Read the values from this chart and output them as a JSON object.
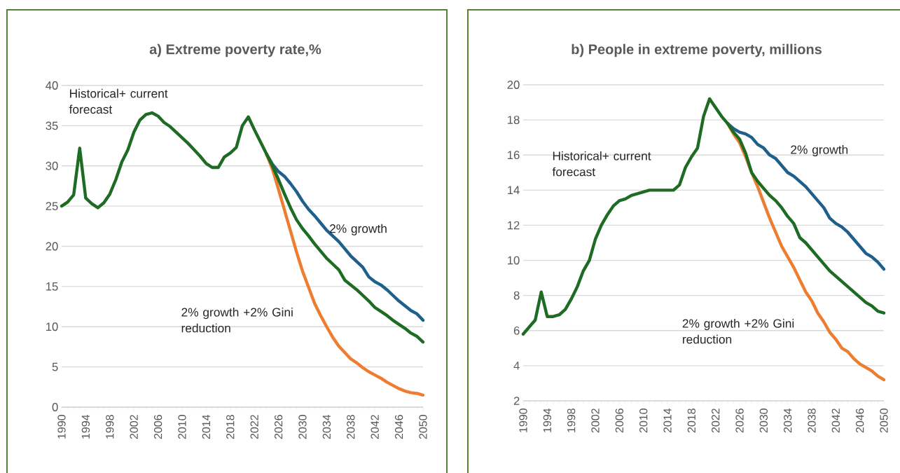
{
  "chart_data": [
    {
      "type": "line",
      "title": "a) Extreme poverty rate,%",
      "xlim": [
        1990,
        2050
      ],
      "xticks": [
        1990,
        1994,
        1998,
        2002,
        2006,
        2010,
        2014,
        2018,
        2022,
        2026,
        2030,
        2034,
        2038,
        2042,
        2046,
        2050
      ],
      "ylim": [
        0,
        40
      ],
      "yticks": [
        0,
        5,
        10,
        15,
        20,
        25,
        30,
        35,
        40
      ],
      "grid": "y",
      "legend": false,
      "marker": "none",
      "line_style": "solid",
      "series": [
        {
          "name": "2% growth",
          "color": "#1f5f8b",
          "x": [
            2024,
            2025,
            2026,
            2027,
            2028,
            2029,
            2030,
            2031,
            2032,
            2033,
            2034,
            2035,
            2036,
            2037,
            2038,
            2039,
            2040,
            2041,
            2042,
            2043,
            2044,
            2045,
            2046,
            2047,
            2048,
            2049,
            2050
          ],
          "values": [
            31.5,
            30.2,
            29.3,
            28.7,
            27.8,
            26.8,
            25.6,
            24.6,
            23.8,
            22.9,
            22.0,
            21.3,
            20.6,
            19.7,
            18.8,
            18.1,
            17.4,
            16.2,
            15.6,
            15.2,
            14.6,
            13.9,
            13.2,
            12.6,
            12.0,
            11.6,
            10.8
          ]
        },
        {
          "name": "2% growth +2% Gini reduction",
          "color": "#ed7d31",
          "x": [
            2024,
            2025,
            2026,
            2027,
            2028,
            2029,
            2030,
            2031,
            2032,
            2033,
            2034,
            2035,
            2036,
            2037,
            2038,
            2039,
            2040,
            2041,
            2042,
            2043,
            2044,
            2045,
            2046,
            2047,
            2048,
            2049,
            2050
          ],
          "values": [
            31.5,
            29.6,
            27.1,
            24.5,
            21.9,
            19.3,
            16.9,
            14.9,
            12.9,
            11.4,
            10.0,
            8.7,
            7.6,
            6.8,
            6.0,
            5.5,
            4.9,
            4.4,
            4.0,
            3.6,
            3.1,
            2.7,
            2.3,
            2.0,
            1.8,
            1.7,
            1.5
          ]
        },
        {
          "name": "Historical+ current forecast",
          "color": "#1e6b24",
          "x": [
            1990,
            1991,
            1992,
            1993,
            1994,
            1995,
            1996,
            1997,
            1998,
            1999,
            2000,
            2001,
            2002,
            2003,
            2004,
            2005,
            2006,
            2007,
            2008,
            2009,
            2010,
            2011,
            2012,
            2013,
            2014,
            2015,
            2016,
            2017,
            2018,
            2019,
            2020,
            2021,
            2022,
            2023,
            2024,
            2025,
            2026,
            2027,
            2028,
            2029,
            2030,
            2031,
            2032,
            2033,
            2034,
            2035,
            2036,
            2037,
            2038,
            2039,
            2040,
            2041,
            2042,
            2043,
            2044,
            2045,
            2046,
            2047,
            2048,
            2049,
            2050
          ],
          "values": [
            25,
            25.5,
            26.4,
            32.2,
            26,
            25.3,
            24.8,
            25.4,
            26.5,
            28.3,
            30.5,
            32,
            34.2,
            35.7,
            36.4,
            36.6,
            36.2,
            35.4,
            34.9,
            34.2,
            33.5,
            32.8,
            32,
            31.2,
            30.3,
            29.8,
            29.8,
            31.1,
            31.6,
            32.3,
            35,
            36.1,
            34.5,
            33,
            31.5,
            30.0,
            28.3,
            26.5,
            24.8,
            23.3,
            22.2,
            21.3,
            20.3,
            19.4,
            18.5,
            17.8,
            17.1,
            15.8,
            15.2,
            14.6,
            13.9,
            13.2,
            12.4,
            11.9,
            11.4,
            10.8,
            10.3,
            9.8,
            9.2,
            8.8,
            8.1
          ]
        }
      ]
    },
    {
      "type": "line",
      "title": "b) People in extreme poverty, millions",
      "xlim": [
        1990,
        2050
      ],
      "xticks": [
        1990,
        1994,
        1998,
        2002,
        2006,
        2010,
        2014,
        2018,
        2022,
        2026,
        2030,
        2034,
        2038,
        2042,
        2046,
        2050
      ],
      "ylim": [
        2,
        20
      ],
      "yticks": [
        2,
        4,
        6,
        8,
        10,
        12,
        14,
        16,
        18,
        20
      ],
      "grid": "y",
      "legend": false,
      "marker": "none",
      "line_style": "solid",
      "series": [
        {
          "name": "2% growth",
          "color": "#1f5f8b",
          "x": [
            2024,
            2025,
            2026,
            2027,
            2028,
            2029,
            2030,
            2031,
            2032,
            2033,
            2034,
            2035,
            2036,
            2037,
            2038,
            2039,
            2040,
            2041,
            2042,
            2043,
            2044,
            2045,
            2046,
            2047,
            2048,
            2049,
            2050
          ],
          "values": [
            17.8,
            17.5,
            17.3,
            17.2,
            17.0,
            16.6,
            16.4,
            16.0,
            15.8,
            15.4,
            15.0,
            14.8,
            14.5,
            14.2,
            13.8,
            13.4,
            13.0,
            12.4,
            12.1,
            11.9,
            11.6,
            11.2,
            10.8,
            10.4,
            10.2,
            9.9,
            9.5
          ]
        },
        {
          "name": "2% growth +2% Gini reduction",
          "color": "#ed7d31",
          "x": [
            2024,
            2025,
            2026,
            2027,
            2028,
            2029,
            2030,
            2031,
            2032,
            2033,
            2034,
            2035,
            2036,
            2037,
            2038,
            2039,
            2040,
            2041,
            2042,
            2043,
            2044,
            2045,
            2046,
            2047,
            2048,
            2049,
            2050
          ],
          "values": [
            17.8,
            17.2,
            16.7,
            15.9,
            15.0,
            14.2,
            13.3,
            12.4,
            11.6,
            10.8,
            10.2,
            9.6,
            8.9,
            8.2,
            7.7,
            7.0,
            6.5,
            5.9,
            5.5,
            5.0,
            4.8,
            4.4,
            4.1,
            3.9,
            3.7,
            3.4,
            3.2
          ]
        },
        {
          "name": "Historical+ current forecast",
          "color": "#1e6b24",
          "x": [
            1990,
            1991,
            1992,
            1993,
            1994,
            1995,
            1996,
            1997,
            1998,
            1999,
            2000,
            2001,
            2002,
            2003,
            2004,
            2005,
            2006,
            2007,
            2008,
            2009,
            2010,
            2011,
            2012,
            2013,
            2014,
            2015,
            2016,
            2017,
            2018,
            2019,
            2020,
            2021,
            2022,
            2023,
            2024,
            2025,
            2026,
            2027,
            2028,
            2029,
            2030,
            2031,
            2032,
            2033,
            2034,
            2035,
            2036,
            2037,
            2038,
            2039,
            2040,
            2041,
            2042,
            2043,
            2044,
            2045,
            2046,
            2047,
            2048,
            2049,
            2050
          ],
          "values": [
            5.8,
            6.2,
            6.6,
            8.2,
            6.8,
            6.8,
            6.9,
            7.2,
            7.8,
            8.5,
            9.4,
            10.0,
            11.2,
            12.0,
            12.6,
            13.1,
            13.4,
            13.5,
            13.7,
            13.8,
            13.9,
            14.0,
            14.0,
            14.0,
            14.0,
            14.0,
            14.3,
            15.3,
            15.9,
            16.4,
            18.2,
            19.2,
            18.7,
            18.2,
            17.8,
            17.3,
            16.9,
            16.1,
            15.0,
            14.5,
            14.1,
            13.7,
            13.4,
            13.0,
            12.5,
            12.1,
            11.3,
            11.0,
            10.6,
            10.2,
            9.8,
            9.4,
            9.1,
            8.8,
            8.5,
            8.2,
            7.9,
            7.6,
            7.4,
            7.1,
            7.0
          ]
        }
      ]
    }
  ]
}
